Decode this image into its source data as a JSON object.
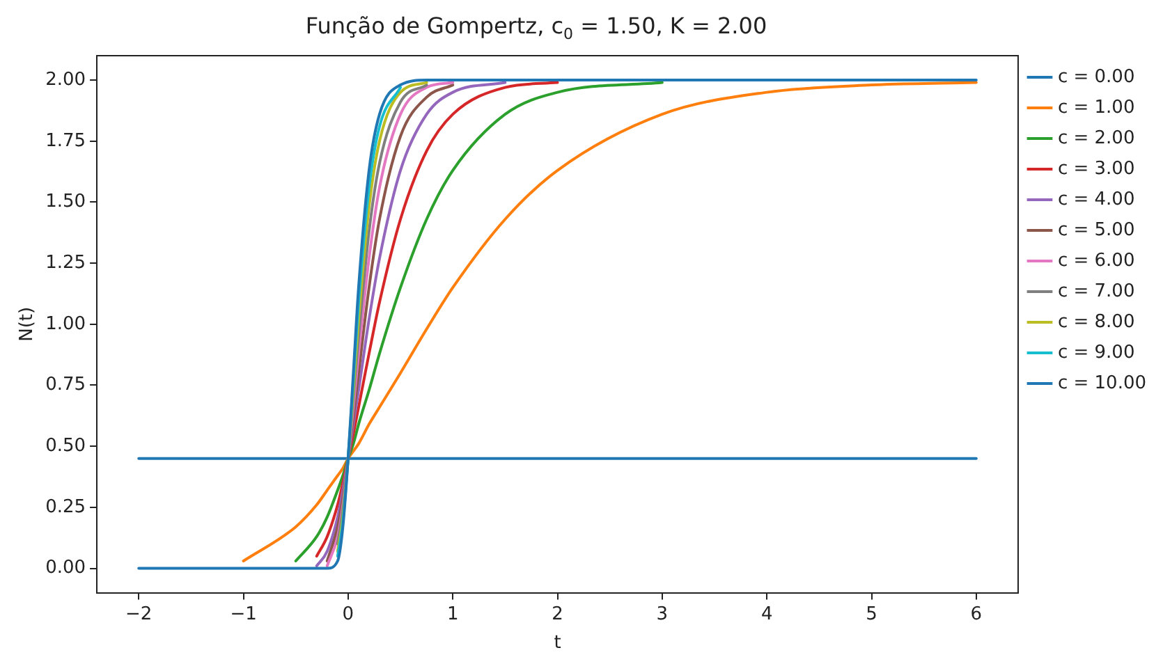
{
  "chart_data": {
    "type": "line",
    "title": "Função de Gompertz, c$_{0}$ = 1.50, K = 2.00",
    "xlabel": "t",
    "ylabel": "N(t)",
    "x": [
      -2,
      -1,
      -0.5,
      -0.3,
      -0.2,
      -0.1,
      -0.05,
      0,
      0.05,
      0.1,
      0.2,
      0.3,
      0.5,
      0.75,
      1,
      1.5,
      2,
      3,
      4,
      5,
      6
    ],
    "series": [
      {
        "name": "c = 0.00",
        "color": "#1f77b4",
        "values": [
          0.45,
          0.45,
          0.45,
          0.45,
          0.45,
          0.45,
          0.45,
          0.45,
          0.45,
          0.45,
          0.45,
          0.45,
          0.45,
          0.45,
          0.45,
          0.45,
          0.45,
          0.45,
          0.45,
          0.45,
          0.45
        ]
      },
      {
        "name": "c = 1.00",
        "color": "#ff7f0e",
        "values": [
          null,
          0.03,
          0.17,
          0.26,
          0.32,
          0.38,
          0.41,
          0.45,
          0.48,
          0.51,
          0.59,
          0.66,
          0.8,
          0.98,
          1.15,
          1.43,
          1.63,
          1.86,
          1.95,
          1.98,
          1.99
        ]
      },
      {
        "name": "c = 2.00",
        "color": "#2ca02c",
        "values": [
          null,
          null,
          0.03,
          0.13,
          0.21,
          0.32,
          0.38,
          0.45,
          0.51,
          0.59,
          0.73,
          0.88,
          1.15,
          1.43,
          1.63,
          1.86,
          1.95,
          1.99,
          null,
          null,
          null
        ]
      },
      {
        "name": "c = 3.00",
        "color": "#d62728",
        "values": [
          null,
          null,
          null,
          0.05,
          0.13,
          0.26,
          0.35,
          0.45,
          0.55,
          0.66,
          0.88,
          1.09,
          1.43,
          1.71,
          1.86,
          1.97,
          1.99,
          null,
          null,
          null,
          null
        ]
      },
      {
        "name": "c = 4.00",
        "color": "#9467bd",
        "values": [
          null,
          null,
          null,
          0.01,
          0.07,
          0.21,
          0.32,
          0.45,
          0.59,
          0.73,
          1.02,
          1.27,
          1.63,
          1.86,
          1.95,
          1.99,
          null,
          null,
          null,
          null,
          null
        ]
      },
      {
        "name": "c = 5.00",
        "color": "#8c564b",
        "values": [
          null,
          null,
          null,
          null,
          0.03,
          0.17,
          0.29,
          0.45,
          0.62,
          0.8,
          1.15,
          1.43,
          1.77,
          1.93,
          1.98,
          null,
          null,
          null,
          null,
          null,
          null
        ]
      },
      {
        "name": "c = 6.00",
        "color": "#e377c2",
        "values": [
          null,
          null,
          null,
          null,
          0.01,
          0.13,
          0.26,
          0.45,
          0.66,
          0.88,
          1.27,
          1.56,
          1.86,
          1.97,
          1.99,
          null,
          null,
          null,
          null,
          null,
          null
        ]
      },
      {
        "name": "c = 7.00",
        "color": "#7f7f7f",
        "values": [
          null,
          null,
          null,
          null,
          null,
          0.1,
          0.24,
          0.45,
          0.7,
          0.95,
          1.38,
          1.66,
          1.91,
          1.98,
          null,
          null,
          null,
          null,
          null,
          null,
          null
        ]
      },
      {
        "name": "c = 8.00",
        "color": "#bcbd22",
        "values": [
          null,
          null,
          null,
          null,
          null,
          0.07,
          0.21,
          0.45,
          0.73,
          1.02,
          1.48,
          1.75,
          1.95,
          1.99,
          null,
          null,
          null,
          null,
          null,
          null,
          null
        ]
      },
      {
        "name": "c = 9.00",
        "color": "#17becf",
        "values": [
          null,
          null,
          null,
          null,
          null,
          0.05,
          0.19,
          0.45,
          0.77,
          1.09,
          1.56,
          1.81,
          1.97,
          null,
          null,
          null,
          null,
          null,
          null,
          null,
          null
        ]
      },
      {
        "name": "c = 10.00",
        "color": "#1f77b4",
        "values": [
          0,
          0,
          0,
          0,
          0,
          0.03,
          0.17,
          0.45,
          0.8,
          1.15,
          1.63,
          1.86,
          1.98,
          2,
          2,
          2,
          2,
          2,
          2,
          2,
          2
        ]
      }
    ],
    "xlim": [
      -2.4,
      6.4
    ],
    "ylim": [
      -0.1,
      2.1
    ],
    "xticks": [
      {
        "value": -2,
        "label": "−2"
      },
      {
        "value": -1,
        "label": "−1"
      },
      0,
      1,
      2,
      3,
      4,
      5,
      6
    ],
    "yticks": [
      {
        "value": 0,
        "label": "0.00"
      },
      {
        "value": 0.25,
        "label": "0.25"
      },
      {
        "value": 0.5,
        "label": "0.50"
      },
      {
        "value": 0.75,
        "label": "0.75"
      },
      {
        "value": 1,
        "label": "1.00"
      },
      {
        "value": 1.25,
        "label": "1.25"
      },
      {
        "value": 1.5,
        "label": "1.50"
      },
      {
        "value": 1.75,
        "label": "1.75"
      },
      {
        "value": 2,
        "label": "2.00"
      }
    ],
    "grid": false,
    "legend": "right",
    "marker": "none",
    "line_style": "solid"
  }
}
